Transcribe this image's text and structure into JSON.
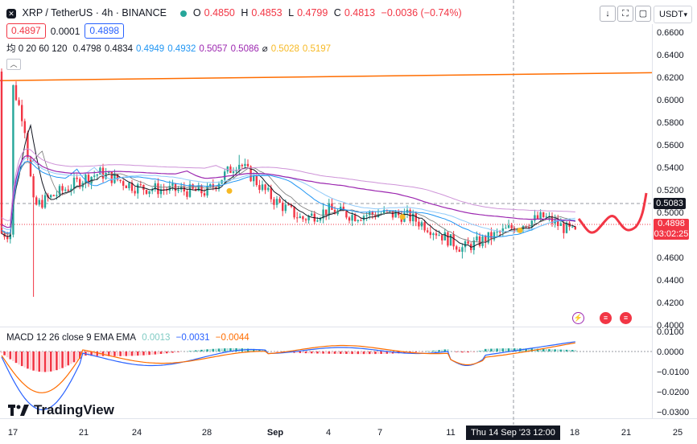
{
  "header": {
    "symbol_title": "XRP / TetherUS · 4h · BINANCE",
    "open_label": "O",
    "open": "0.4850",
    "high_label": "H",
    "high": "0.4853",
    "low_label": "L",
    "low": "0.4799",
    "close_label": "C",
    "close": "0.4813",
    "change": "−0.0036 (−0.74%)",
    "sell_price": "0.4897",
    "spread": "0.0001",
    "buy_price": "0.4898",
    "ma_label": "均 0 20 60 120",
    "ma_values": [
      "0.4798",
      "0.4834",
      "0.4949",
      "0.4932",
      "0.5057",
      "0.5086",
      "⌀",
      "0.5028",
      "0.5197"
    ],
    "ma_colors": [
      "#131722",
      "#131722",
      "#2196f3",
      "#2196f3",
      "#9c27b0",
      "#9c27b0",
      "#131722",
      "#f7b924",
      "#f7b924"
    ],
    "currency": "USDT"
  },
  "macd": {
    "label": "MACD 12 26 close 9 EMA EMA",
    "hist": "0.0013",
    "macd": "−0.0031",
    "signal": "−0.0044",
    "axis_ticks": [
      "0.0100",
      "0.0000",
      "−0.0100",
      "−0.0200",
      "−0.0300"
    ]
  },
  "price_axis": {
    "ticks": [
      "0.6600",
      "0.6400",
      "0.6200",
      "0.6000",
      "0.5800",
      "0.5600",
      "0.5400",
      "0.5200",
      "0.5000",
      "0.4800",
      "0.4600",
      "0.4400",
      "0.4200",
      "0.4000"
    ],
    "tag_dark": "0.5083",
    "tag_red_price": "0.4898",
    "tag_red_timer": "03:02:25"
  },
  "time_axis": {
    "ticks": [
      "17",
      "21",
      "24",
      "28",
      "Sep",
      "4",
      "7",
      "11",
      "18",
      "21",
      "25"
    ],
    "crosshair": "Thu 14 Sep '23   12:00"
  },
  "brand": "TradingView",
  "chart_data": {
    "type": "candlestick",
    "title": "XRP / TetherUS · 4h · BINANCE",
    "y_range": [
      0.4,
      0.67
    ],
    "x_ticks": [
      "17",
      "21",
      "24",
      "28",
      "Sep",
      "4",
      "7",
      "11",
      "18",
      "21",
      "25"
    ],
    "close_path": [
      {
        "x": "17",
        "y": 0.612
      },
      {
        "x": "18",
        "y": 0.58
      },
      {
        "x": "19",
        "y": 0.505
      },
      {
        "x": "21",
        "y": 0.53
      },
      {
        "x": "22",
        "y": 0.535
      },
      {
        "x": "24",
        "y": 0.522
      },
      {
        "x": "26",
        "y": 0.52
      },
      {
        "x": "28",
        "y": 0.518
      },
      {
        "x": "29",
        "y": 0.545
      },
      {
        "x": "31",
        "y": 0.522
      },
      {
        "x": "Sep",
        "y": 0.51
      },
      {
        "x": "2",
        "y": 0.494
      },
      {
        "x": "4",
        "y": 0.502
      },
      {
        "x": "6",
        "y": 0.497
      },
      {
        "x": "7",
        "y": 0.499
      },
      {
        "x": "9",
        "y": 0.497
      },
      {
        "x": "10",
        "y": 0.488
      },
      {
        "x": "11",
        "y": 0.468
      },
      {
        "x": "13",
        "y": 0.478
      },
      {
        "x": "14",
        "y": 0.487
      },
      {
        "x": "16",
        "y": 0.496
      },
      {
        "x": "18",
        "y": 0.4813
      }
    ],
    "lows": [
      {
        "x": "18",
        "y": 0.425
      },
      {
        "x": "11",
        "y": 0.459
      }
    ],
    "highs": [
      {
        "x": "29",
        "y": 0.551
      }
    ],
    "last_close": 0.4813,
    "ma_colors": {
      "ma20": "#131722",
      "ma60": "#2196f3",
      "ma120": "#9c27b0"
    },
    "trendline_color": "#ff6d00",
    "macd_type": "histogram+lines",
    "macd_range": [
      -0.031,
      0.011
    ]
  }
}
